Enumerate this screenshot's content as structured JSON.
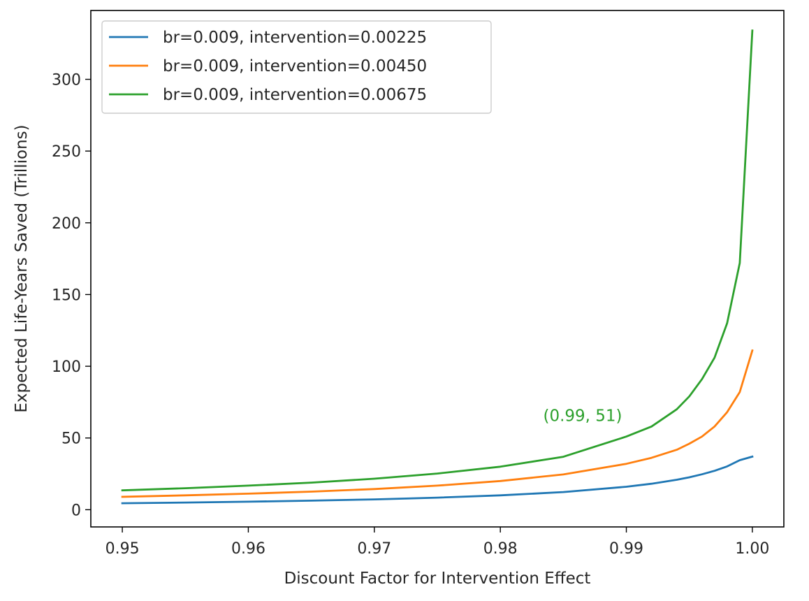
{
  "chart_data": {
    "type": "line",
    "title": "",
    "xlabel": "Discount Factor for Intervention Effect",
    "ylabel": "Expected Life-Years Saved (Trillions)",
    "xlim": [
      0.9475,
      1.0025
    ],
    "ylim": [
      -12,
      348
    ],
    "xticks": [
      0.95,
      0.96,
      0.97,
      0.98,
      0.99,
      1.0
    ],
    "xtick_labels": [
      "0.95",
      "0.96",
      "0.97",
      "0.98",
      "0.99",
      "1.00"
    ],
    "yticks": [
      0,
      50,
      100,
      150,
      200,
      250,
      300
    ],
    "ytick_labels": [
      "0",
      "50",
      "100",
      "150",
      "200",
      "250",
      "300"
    ],
    "grid": false,
    "legend_position": "top-left",
    "x": [
      0.95,
      0.955,
      0.96,
      0.965,
      0.97,
      0.975,
      0.98,
      0.985,
      0.99,
      0.992,
      0.994,
      0.995,
      0.996,
      0.997,
      0.998,
      0.999,
      1.0
    ],
    "series": [
      {
        "name": "br=0.009, intervention=0.00225",
        "color": "#1f77b4",
        "values": [
          4.5,
          5.0,
          5.6,
          6.3,
          7.2,
          8.4,
          10.0,
          12.3,
          16.0,
          18.1,
          20.9,
          22.6,
          24.7,
          27.1,
          30.2,
          34.5,
          37.0
        ]
      },
      {
        "name": "br=0.009, intervention=0.00450",
        "color": "#ff7f0e",
        "values": [
          9.0,
          10.0,
          11.2,
          12.6,
          14.4,
          16.8,
          20.0,
          24.6,
          32.0,
          36.2,
          41.8,
          46.0,
          51.0,
          58.0,
          68.0,
          82.0,
          111.0
        ]
      },
      {
        "name": "br=0.009, intervention=0.00675",
        "color": "#2ca02c",
        "values": [
          13.5,
          15.0,
          16.8,
          18.9,
          21.6,
          25.2,
          30.0,
          36.9,
          51.0,
          58.0,
          70.0,
          79.0,
          91.0,
          106.0,
          130.0,
          172.0,
          334.0
        ]
      }
    ],
    "annotations": [
      {
        "text": "(0.99, 51)",
        "x": 0.99,
        "y": 51,
        "color": "#2ca02c"
      }
    ]
  }
}
